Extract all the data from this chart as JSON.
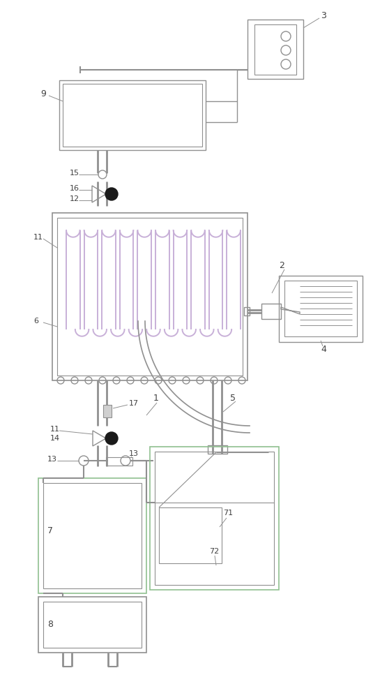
{
  "bg_color": "#ffffff",
  "lc": "#909090",
  "pc": "#c8b0d8",
  "gc": "#90c090",
  "fig_width": 5.35,
  "fig_height": 10.0,
  "dpi": 100
}
